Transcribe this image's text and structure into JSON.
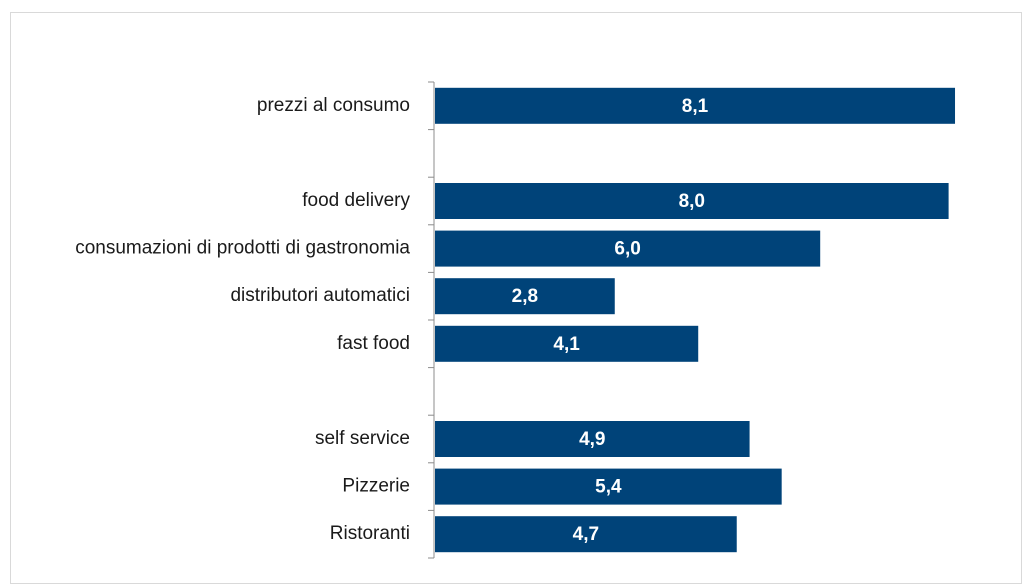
{
  "chart_data": {
    "type": "bar",
    "orientation": "horizontal",
    "title": "",
    "xlabel": "",
    "ylabel": "",
    "bar_color": "#004379",
    "legend": "none",
    "grid": false,
    "rows": [
      {
        "category": "prezzi al consumo",
        "value": 8.1,
        "label": "8,1"
      },
      {
        "category": "",
        "value": null,
        "label": ""
      },
      {
        "category": "food delivery",
        "value": 8.0,
        "label": "8,0"
      },
      {
        "category": "consumazioni di prodotti di gastronomia",
        "value": 6.0,
        "label": "6,0"
      },
      {
        "category": "distributori automatici",
        "value": 2.8,
        "label": "2,8"
      },
      {
        "category": "fast food",
        "value": 4.1,
        "label": "4,1"
      },
      {
        "category": "",
        "value": null,
        "label": ""
      },
      {
        "category": "self service",
        "value": 4.9,
        "label": "4,9"
      },
      {
        "category": "Pizzerie",
        "value": 5.4,
        "label": "5,4"
      },
      {
        "category": "Ristoranti",
        "value": 4.7,
        "label": "4,7"
      }
    ]
  }
}
